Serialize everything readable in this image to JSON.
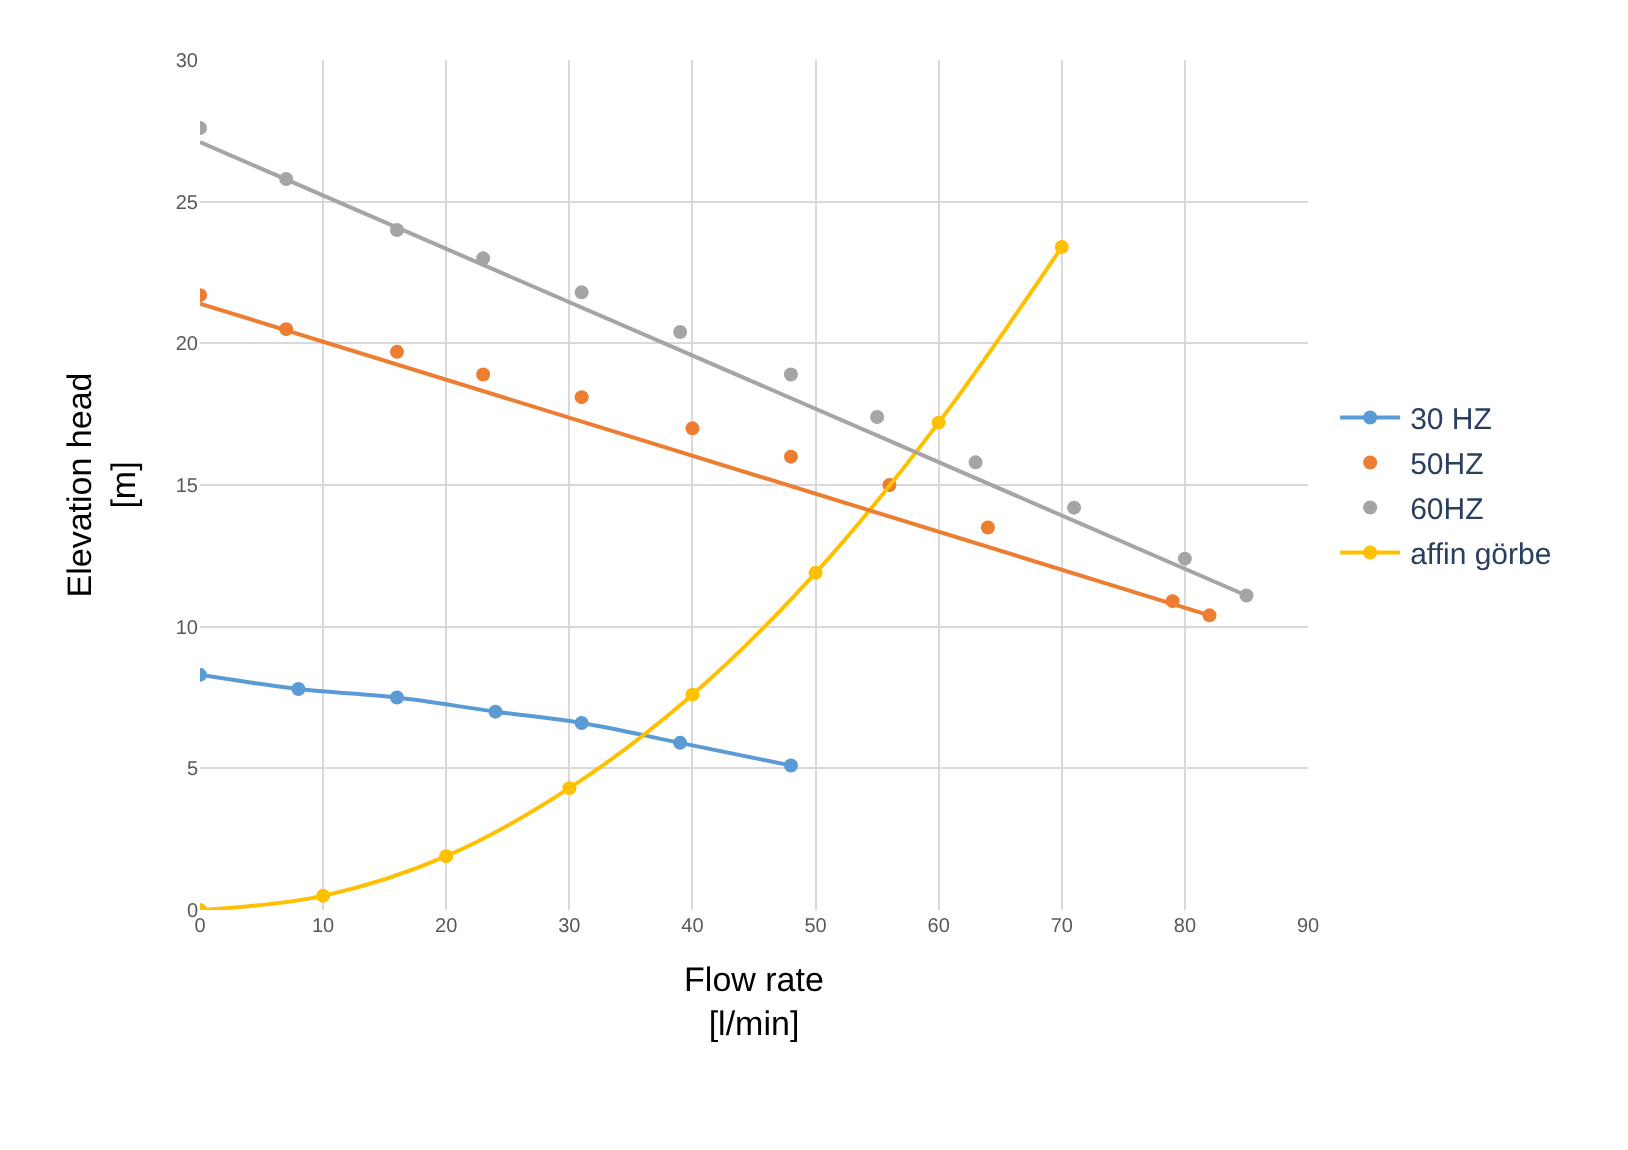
{
  "chart_data": {
    "type": "scatter",
    "xlabel": "Flow rate\n[l/min]",
    "ylabel": "Elevation head\n[m]",
    "xlim": [
      0,
      90
    ],
    "xticks": [
      0,
      10,
      20,
      30,
      40,
      50,
      60,
      70,
      80,
      90
    ],
    "ylim": [
      0,
      30
    ],
    "yticks": [
      0,
      5,
      10,
      15,
      20,
      25,
      30
    ],
    "grid": true,
    "legend": "right",
    "marker": "circle",
    "series": [
      {
        "name": "30 HZ",
        "type": "line",
        "color": "#5b9bd5",
        "x": [
          0,
          8,
          16,
          24,
          31,
          39,
          48
        ],
        "values": [
          8.3,
          7.8,
          7.5,
          7.0,
          6.6,
          5.9,
          5.1
        ]
      },
      {
        "name": "50HZ",
        "color": "#ed7d31",
        "x": [
          0,
          7,
          16,
          23,
          31,
          40,
          48,
          56,
          64,
          79,
          82
        ],
        "values": [
          21.7,
          20.5,
          19.7,
          18.9,
          18.1,
          17.0,
          16.0,
          15.0,
          13.5,
          10.9,
          10.4
        ]
      },
      {
        "name": "60HZ",
        "color": "#a5a5a5",
        "x": [
          0,
          7,
          16,
          23,
          31,
          39,
          48,
          55,
          63,
          71,
          80,
          85
        ],
        "values": [
          27.6,
          25.8,
          24.0,
          23.0,
          21.8,
          20.4,
          18.9,
          17.4,
          15.8,
          14.2,
          12.4,
          11.1
        ]
      },
      {
        "name": "affin görbe",
        "type": "line",
        "color": "#ffc000",
        "x": [
          0,
          10,
          20,
          30,
          40,
          50,
          60,
          70
        ],
        "values": [
          0,
          0.5,
          1.9,
          4.3,
          7.6,
          11.9,
          17.2,
          23.4
        ]
      },
      {
        "type": "line",
        "color": "#ed7d31",
        "marker": "none",
        "x": [
          0,
          82
        ],
        "values": [
          21.4,
          10.4
        ]
      },
      {
        "type": "line",
        "color": "#a5a5a5",
        "marker": "none",
        "x": [
          0,
          85
        ],
        "values": [
          27.1,
          11.1
        ]
      }
    ]
  }
}
